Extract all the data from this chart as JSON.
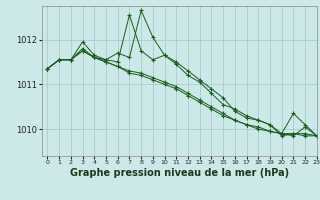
{
  "background_color": "#cce8e8",
  "grid_color": "#aacccc",
  "line_color": "#1a5c1a",
  "marker_color": "#1a5c1a",
  "xlabel": "Graphe pression niveau de la mer (hPa)",
  "xlabel_fontsize": 7,
  "xlim": [
    -0.5,
    23
  ],
  "ylim": [
    1009.4,
    1012.75
  ],
  "yticks": [
    1010,
    1011,
    1012
  ],
  "xticks": [
    0,
    1,
    2,
    3,
    4,
    5,
    6,
    7,
    8,
    9,
    10,
    11,
    12,
    13,
    14,
    15,
    16,
    17,
    18,
    19,
    20,
    21,
    22,
    23
  ],
  "series": [
    [
      1011.35,
      1011.55,
      1011.55,
      1011.75,
      1011.6,
      1011.55,
      1011.5,
      1012.55,
      1011.75,
      1011.55,
      1011.65,
      1011.45,
      1011.2,
      1011.05,
      1010.8,
      1010.55,
      1010.45,
      1010.3,
      1010.2,
      1010.1,
      1009.85,
      1009.9,
      1009.85,
      1009.85
    ],
    [
      1011.35,
      1011.55,
      1011.55,
      1011.95,
      1011.65,
      1011.55,
      1011.7,
      1011.6,
      1012.65,
      1012.05,
      1011.65,
      1011.5,
      1011.3,
      1011.1,
      1010.9,
      1010.7,
      1010.4,
      1010.25,
      1010.2,
      1010.1,
      1009.9,
      1009.9,
      1009.9,
      1009.85
    ],
    [
      1011.35,
      1011.55,
      1011.55,
      1011.75,
      1011.6,
      1011.5,
      1011.4,
      1011.3,
      1011.25,
      1011.15,
      1011.05,
      1010.95,
      1010.8,
      1010.65,
      1010.5,
      1010.35,
      1010.2,
      1010.1,
      1010.05,
      1009.95,
      1009.9,
      1010.35,
      1010.1,
      1009.85
    ],
    [
      1011.35,
      1011.55,
      1011.55,
      1011.8,
      1011.6,
      1011.5,
      1011.4,
      1011.25,
      1011.2,
      1011.1,
      1011.0,
      1010.9,
      1010.75,
      1010.6,
      1010.45,
      1010.3,
      1010.2,
      1010.1,
      1010.0,
      1009.95,
      1009.9,
      1009.85,
      1010.05,
      1009.85
    ]
  ]
}
